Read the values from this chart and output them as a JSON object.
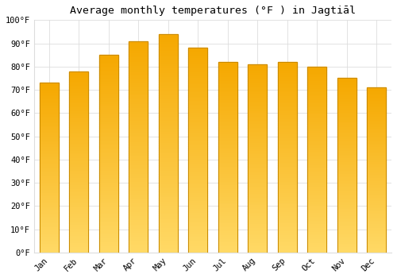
{
  "title": "Average monthly temperatures (°F ) in Jagtiāl",
  "months": [
    "Jan",
    "Feb",
    "Mar",
    "Apr",
    "May",
    "Jun",
    "Jul",
    "Aug",
    "Sep",
    "Oct",
    "Nov",
    "Dec"
  ],
  "values": [
    73,
    78,
    85,
    91,
    94,
    88,
    82,
    81,
    82,
    80,
    75,
    71
  ],
  "bar_color_top": "#F5A800",
  "bar_color_bottom": "#FFD966",
  "bar_edge_color": "#C98A00",
  "background_color": "#FFFFFF",
  "grid_color": "#DDDDDD",
  "ylim": [
    0,
    100
  ],
  "ytick_step": 10,
  "title_fontsize": 9.5,
  "tick_fontsize": 7.5,
  "font_family": "monospace",
  "bar_width": 0.65
}
